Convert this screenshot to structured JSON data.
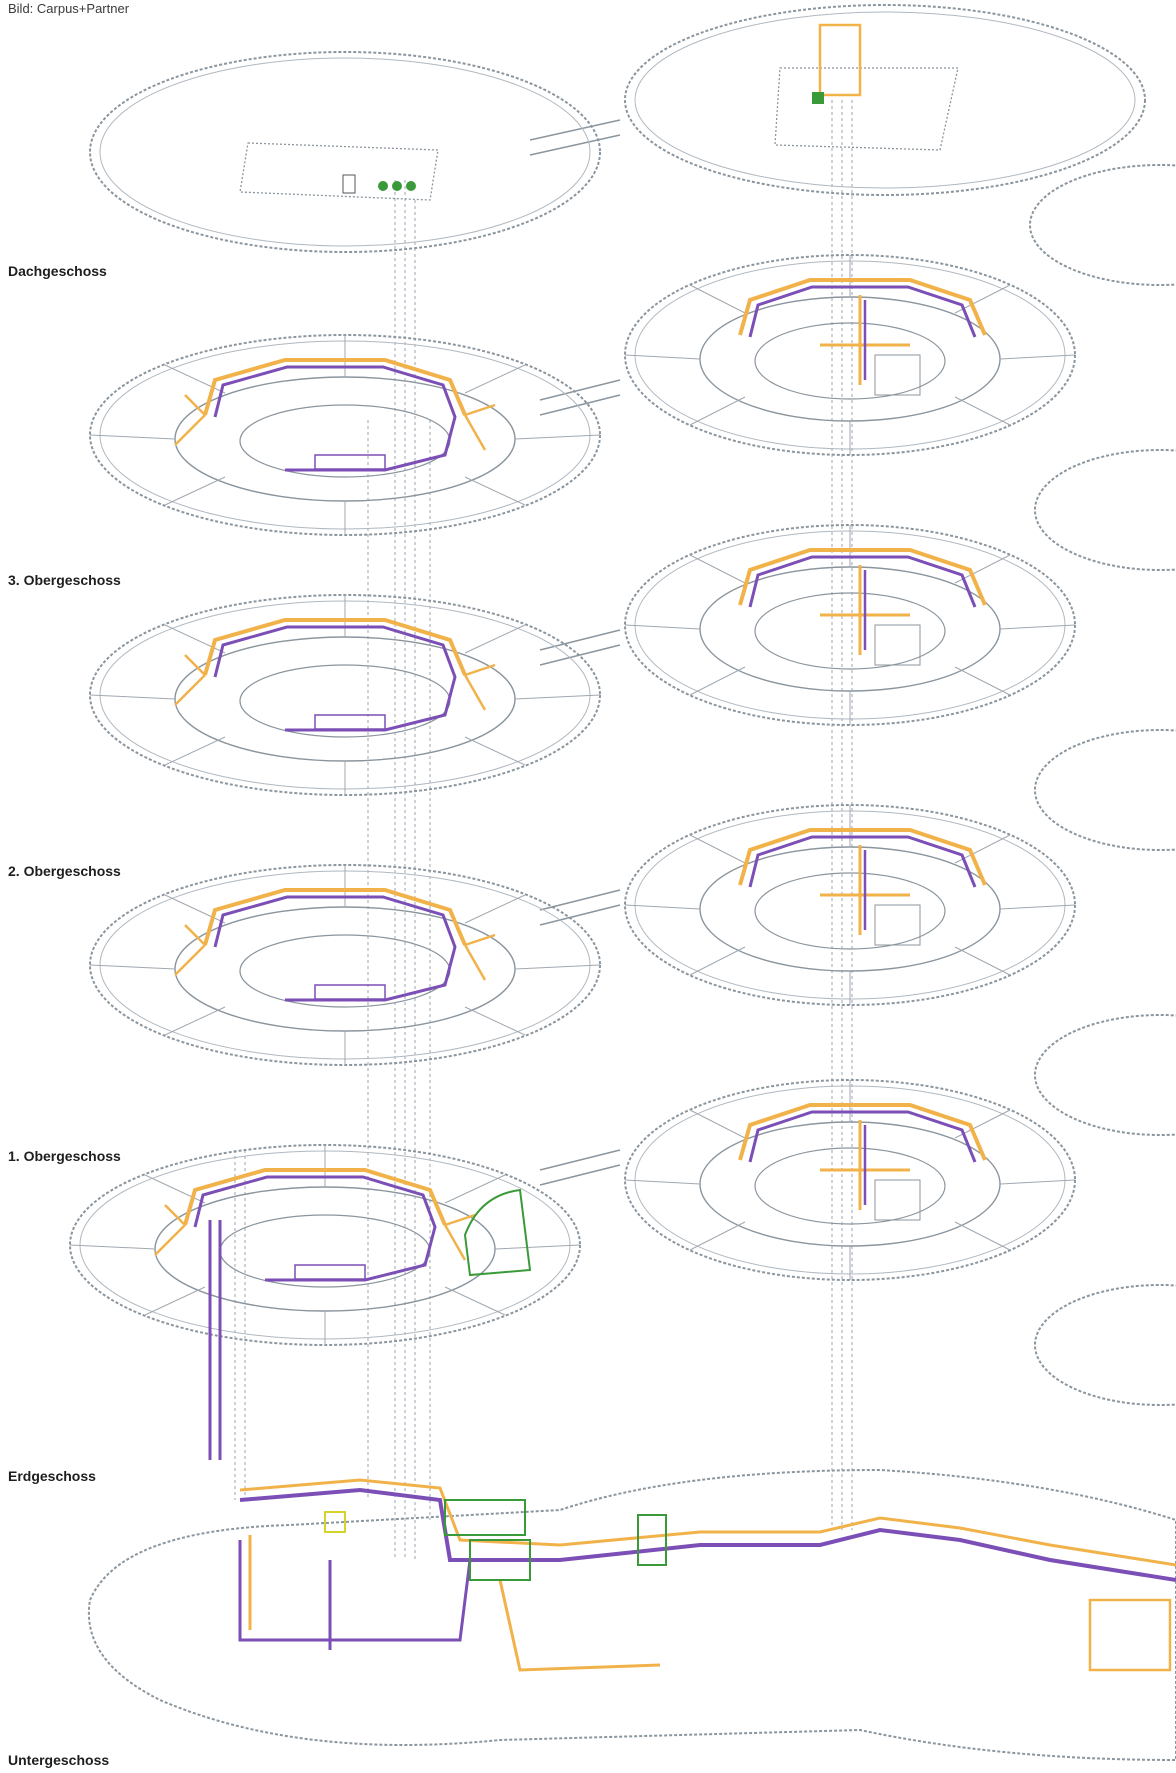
{
  "credit": "Bild: Carpus+Partner",
  "floors": [
    {
      "label": "Dachgeschoss"
    },
    {
      "label": "3. Obergeschoss"
    },
    {
      "label": "2. Obergeschoss"
    },
    {
      "label": "1. Obergeschoss"
    },
    {
      "label": "Erdgeschoss"
    },
    {
      "label": "Untergeschoss"
    }
  ],
  "legend_colors": {
    "structure": "#8a959e",
    "supply_duct": "#f2b24a",
    "exhaust_duct": "#7b4fb5",
    "equipment": "#3a9a3a",
    "riser": "#9aa6b2"
  }
}
